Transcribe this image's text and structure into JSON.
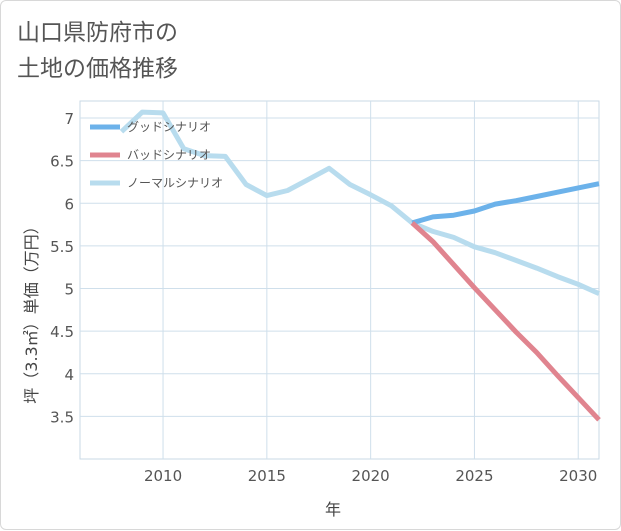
{
  "title_lines": [
    "山口県防府市の",
    "土地の価格推移"
  ],
  "chart_data": {
    "type": "line",
    "xlabel": "年",
    "ylabel": "坪（3.3㎡）単価（万円）",
    "xlim": [
      2006,
      2031
    ],
    "ylim": [
      3.0,
      7.2
    ],
    "xticks": [
      2010,
      2015,
      2020,
      2025,
      2030
    ],
    "yticks": [
      3.5,
      4,
      4.5,
      5,
      5.5,
      6,
      6.5,
      7
    ],
    "grid": true,
    "legend_position": "top-left",
    "series": [
      {
        "name": "グッドシナリオ",
        "color": "#6cb2ea",
        "x": [
          2022,
          2023,
          2024,
          2025,
          2026,
          2027,
          2028,
          2029,
          2030,
          2031
        ],
        "y": [
          5.77,
          5.84,
          5.86,
          5.91,
          5.99,
          6.03,
          6.08,
          6.13,
          6.18,
          6.23
        ]
      },
      {
        "name": "バッドシナリオ",
        "color": "#e0848f",
        "x": [
          2022,
          2023,
          2024,
          2025,
          2026,
          2027,
          2028,
          2029,
          2030,
          2031
        ],
        "y": [
          5.77,
          5.55,
          5.28,
          5.01,
          4.75,
          4.49,
          4.25,
          3.98,
          3.72,
          3.46
        ]
      },
      {
        "name": "ノーマルシナリオ",
        "color": "#b8dcee",
        "x": [
          2008,
          2009,
          2010,
          2011,
          2012,
          2013,
          2014,
          2015,
          2016,
          2017,
          2018,
          2019,
          2020,
          2021,
          2022,
          2023,
          2024,
          2025,
          2026,
          2027,
          2028,
          2029,
          2030,
          2031
        ],
        "y": [
          6.84,
          7.07,
          7.06,
          6.64,
          6.56,
          6.55,
          6.22,
          6.09,
          6.15,
          6.28,
          6.41,
          6.22,
          6.1,
          5.97,
          5.77,
          5.67,
          5.6,
          5.49,
          5.42,
          5.33,
          5.24,
          5.14,
          5.05,
          4.94
        ]
      }
    ]
  }
}
